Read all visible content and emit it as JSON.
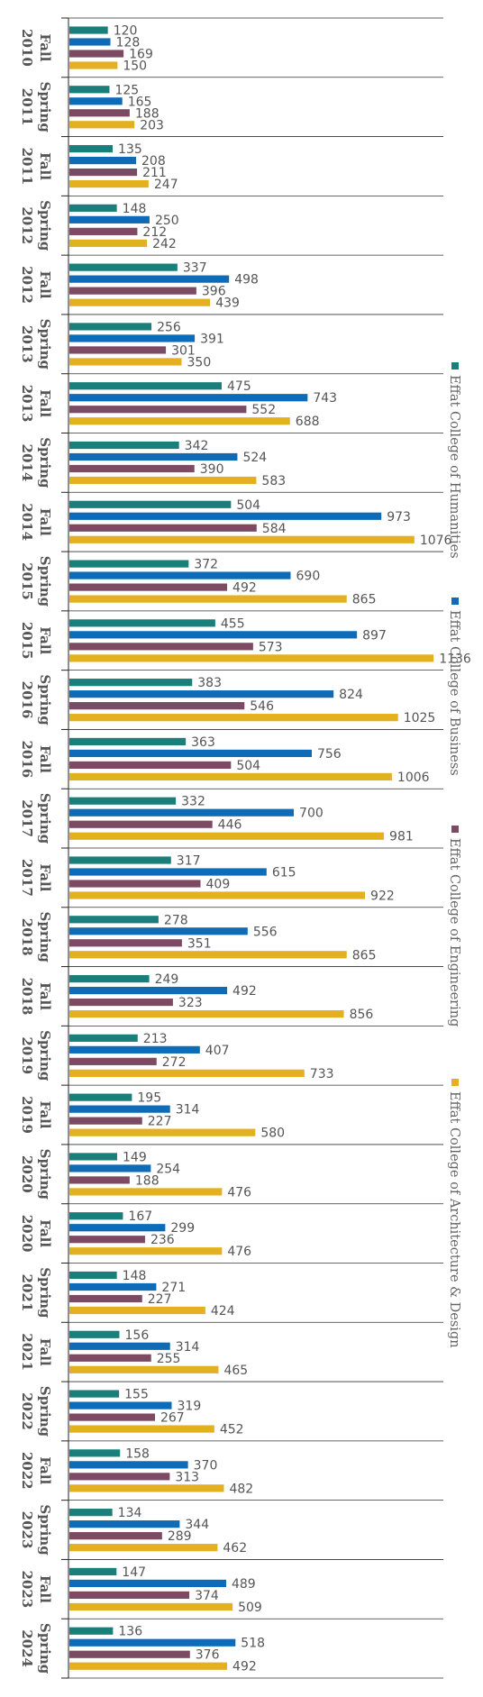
{
  "chart_data": {
    "type": "bar",
    "orientation": "horizontal",
    "legend_position": "right",
    "grid": false,
    "xlim": [
      0,
      1140
    ],
    "categories": [
      [
        "Fall",
        "2010"
      ],
      [
        "Spring",
        "2011"
      ],
      [
        "Fall",
        "2011"
      ],
      [
        "Spring",
        "2012"
      ],
      [
        "Fall",
        "2012"
      ],
      [
        "Spring",
        "2013"
      ],
      [
        "Fall",
        "2013"
      ],
      [
        "Spring",
        "2014"
      ],
      [
        "Fall",
        "2014"
      ],
      [
        "Spring",
        "2015"
      ],
      [
        "Fall",
        "2015"
      ],
      [
        "Spring",
        "2016"
      ],
      [
        "Fall",
        "2016"
      ],
      [
        "Spring",
        "2017"
      ],
      [
        "Fall",
        "2017"
      ],
      [
        "Spring",
        "2018"
      ],
      [
        "Fall",
        "2018"
      ],
      [
        "Spring",
        "2019"
      ],
      [
        "Fall",
        "2019"
      ],
      [
        "Spring",
        "2020"
      ],
      [
        "Fall",
        "2020"
      ],
      [
        "Spring",
        "2021"
      ],
      [
        "Fall",
        "2021"
      ],
      [
        "Spring",
        "2022"
      ],
      [
        "Fall",
        "2022"
      ],
      [
        "Spring",
        "2023"
      ],
      [
        "Fall",
        "2023"
      ],
      [
        "Spring",
        "2024"
      ]
    ],
    "series": [
      {
        "name": "Effat College of Humanities",
        "color": "#1a7f7a",
        "values": [
          120,
          125,
          135,
          148,
          337,
          256,
          475,
          342,
          504,
          372,
          455,
          383,
          363,
          332,
          317,
          278,
          249,
          213,
          195,
          149,
          167,
          148,
          156,
          155,
          158,
          134,
          147,
          136
        ]
      },
      {
        "name": "Effat College of Business",
        "color": "#0e6bb8",
        "values": [
          128,
          165,
          208,
          250,
          498,
          391,
          743,
          524,
          973,
          690,
          897,
          824,
          756,
          700,
          615,
          556,
          492,
          407,
          314,
          254,
          299,
          271,
          314,
          319,
          370,
          344,
          489,
          518
        ]
      },
      {
        "name": "Effat College of Engineering",
        "color": "#7d4a63",
        "values": [
          169,
          188,
          211,
          212,
          396,
          301,
          552,
          390,
          584,
          492,
          573,
          546,
          504,
          446,
          409,
          351,
          323,
          272,
          227,
          188,
          236,
          227,
          255,
          267,
          313,
          289,
          374,
          376
        ]
      },
      {
        "name": "Effat College of Architecture & Design",
        "color": "#e3b01f",
        "values": [
          150,
          203,
          247,
          242,
          439,
          350,
          688,
          583,
          1076,
          865,
          1136,
          1025,
          1006,
          981,
          922,
          865,
          856,
          733,
          580,
          476,
          476,
          424,
          465,
          452,
          482,
          462,
          509,
          492
        ]
      }
    ]
  }
}
